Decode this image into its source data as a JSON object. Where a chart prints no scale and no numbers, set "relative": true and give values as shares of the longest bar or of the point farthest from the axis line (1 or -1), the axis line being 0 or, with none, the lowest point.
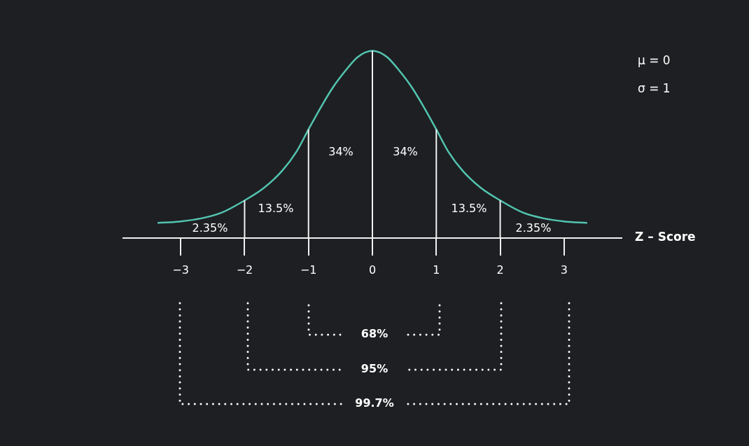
{
  "chart_data": {
    "type": "line",
    "xlabel": "Z – Score",
    "relative": true,
    "marker": "none",
    "color": "#52c4b0",
    "xlim": [
      -3.9,
      3.9
    ],
    "xticks": [
      {
        "value": -3,
        "label": "−3"
      },
      {
        "value": -2,
        "label": "−2"
      },
      {
        "value": -1,
        "label": "−1"
      },
      0,
      1,
      2,
      3
    ],
    "x": [
      -3.35,
      -3.0,
      -2.68,
      -2.35,
      -2.0,
      -1.7,
      -1.41,
      -1.19,
      -1.0,
      -0.79,
      -0.61,
      -0.42,
      -0.24,
      -0.12,
      0,
      0.12,
      0.24,
      0.42,
      0.61,
      0.79,
      1.0,
      1.19,
      1.41,
      1.7,
      2.0,
      2.35,
      2.68,
      3.0,
      3.35
    ],
    "values": [
      0.081,
      0.089,
      0.105,
      0.137,
      0.201,
      0.267,
      0.36,
      0.46,
      0.58,
      0.708,
      0.808,
      0.894,
      0.963,
      0.99,
      1,
      0.99,
      0.963,
      0.894,
      0.808,
      0.708,
      0.58,
      0.46,
      0.36,
      0.267,
      0.201,
      0.137,
      0.105,
      0.089,
      0.081
    ],
    "ref_lines": [
      {
        "axis": "x",
        "value": -2,
        "color": "#f2f2f2"
      },
      {
        "axis": "x",
        "value": -1,
        "color": "#f2f2f2"
      },
      {
        "axis": "x",
        "value": 0,
        "color": "#f2f2f2"
      },
      {
        "axis": "x",
        "value": 1,
        "color": "#f2f2f2"
      },
      {
        "axis": "x",
        "value": 2,
        "color": "#f2f2f2"
      }
    ],
    "annotations": [
      "μ = 0",
      "σ = 1",
      "2.35%",
      "13.5%",
      "34%",
      "34%",
      "13.5%",
      "2.35%",
      "68%",
      "95%",
      "99.7%"
    ]
  }
}
